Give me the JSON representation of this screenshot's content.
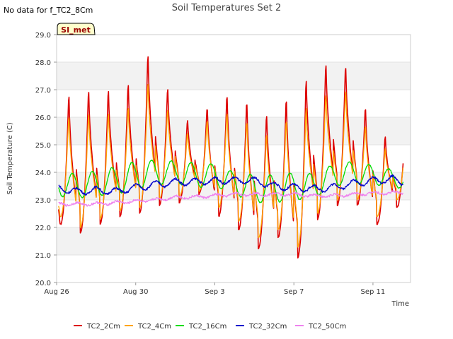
{
  "no_data_text": "No data for f_TC2_8Cm",
  "badge": {
    "label": "SI_met",
    "fill": "#ffffcc",
    "text_color": "#990000"
  },
  "chart_data": {
    "type": "line",
    "title": "Soil Temperatures Set 2",
    "xlabel": "Time",
    "ylabel": "Soil Temperature (C)",
    "ylim": [
      20.0,
      29.0
    ],
    "yticks": [
      "20.0",
      "21.0",
      "22.0",
      "23.0",
      "24.0",
      "25.0",
      "26.0",
      "27.0",
      "28.0",
      "29.0"
    ],
    "xlim_days": [
      0,
      17.9
    ],
    "xticks": [
      {
        "label": "Aug 26",
        "day": 0
      },
      {
        "label": "Aug 30",
        "day": 4
      },
      {
        "label": "Sep 3",
        "day": 8
      },
      {
        "label": "Sep 7",
        "day": 12
      },
      {
        "label": "Sep 11",
        "day": 16
      }
    ],
    "grid": "horizontal alternating bands",
    "legend_position": "bottom",
    "series": [
      {
        "name": "TC2_2Cm",
        "color": "#dd0000",
        "width": 1.6,
        "base": [
          23.0,
          23.1,
          23.2,
          23.1,
          23.2,
          23.3,
          23.4,
          23.4,
          23.6,
          23.5,
          23.4,
          23.3,
          23.4,
          23.3,
          23.6,
          23.8,
          23.9,
          24.1,
          23.8
        ],
        "peak": [
          27.1,
          27.3,
          27.3,
          27.5,
          28.6,
          27.3,
          26.1,
          26.6,
          27.1,
          26.9,
          26.4,
          27.0,
          27.7,
          28.3,
          28.2,
          26.6,
          25.5
        ],
        "trough": [
          22.1,
          21.8,
          22.1,
          22.4,
          22.5,
          22.8,
          22.9,
          23.2,
          22.4,
          21.9,
          21.2,
          21.6,
          20.9,
          22.3,
          22.8,
          22.8,
          22.1,
          22.7
        ],
        "amp": 0,
        "jitter": 0.03
      },
      {
        "name": "TC2_4Cm",
        "color": "#ffa500",
        "width": 1.3,
        "base": [
          23.0,
          23.1,
          23.2,
          23.1,
          23.2,
          23.3,
          23.4,
          23.4,
          23.6,
          23.5,
          23.4,
          23.3,
          23.4,
          23.3,
          23.6,
          23.8,
          23.9,
          24.1,
          23.8
        ],
        "peak": [
          26.3,
          26.4,
          26.4,
          26.6,
          27.5,
          26.5,
          25.6,
          26.1,
          26.4,
          26.1,
          25.6,
          26.2,
          26.6,
          27.1,
          27.2,
          25.9,
          25.0
        ],
        "trough": [
          22.4,
          22.0,
          22.3,
          22.6,
          22.7,
          23.0,
          23.1,
          23.3,
          22.7,
          22.2,
          21.6,
          21.9,
          21.3,
          22.5,
          23.0,
          23.0,
          22.4,
          23.0
        ],
        "amp": 0,
        "jitter": 0.03
      },
      {
        "name": "TC2_16Cm",
        "color": "#00dd00",
        "width": 1.3,
        "base": [
          23.6,
          23.5,
          23.6,
          23.7,
          23.9,
          24.0,
          24.0,
          23.9,
          23.9,
          23.6,
          23.4,
          23.4,
          23.5,
          23.5,
          23.9,
          24.0,
          23.9,
          23.8,
          23.6
        ],
        "amp": [
          0.45,
          0.45,
          0.45,
          0.5,
          0.5,
          0.45,
          0.4,
          0.45,
          0.4,
          0.4,
          0.5,
          0.5,
          0.5,
          0.45,
          0.4,
          0.4,
          0.35,
          0.3,
          0.3
        ],
        "phase": 0.55,
        "jitter": 0.02
      },
      {
        "name": "TC2_32Cm",
        "color": "#0000cc",
        "width": 1.3,
        "base": [
          23.45,
          23.3,
          23.35,
          23.3,
          23.45,
          23.55,
          23.65,
          23.65,
          23.7,
          23.7,
          23.7,
          23.5,
          23.45,
          23.4,
          23.45,
          23.6,
          23.7,
          23.75,
          23.55
        ],
        "amp": 0.12,
        "phase": 0.75,
        "jitter": 0.04
      },
      {
        "name": "TC2_50Cm",
        "color": "#ee82ee",
        "width": 1.3,
        "base": [
          22.85,
          22.85,
          22.85,
          22.9,
          22.95,
          23.0,
          23.1,
          23.1,
          23.15,
          23.2,
          23.2,
          23.2,
          23.2,
          23.15,
          23.15,
          23.2,
          23.25,
          23.25,
          23.3
        ],
        "amp": 0.05,
        "phase": 0.8,
        "jitter": 0.04
      }
    ]
  }
}
